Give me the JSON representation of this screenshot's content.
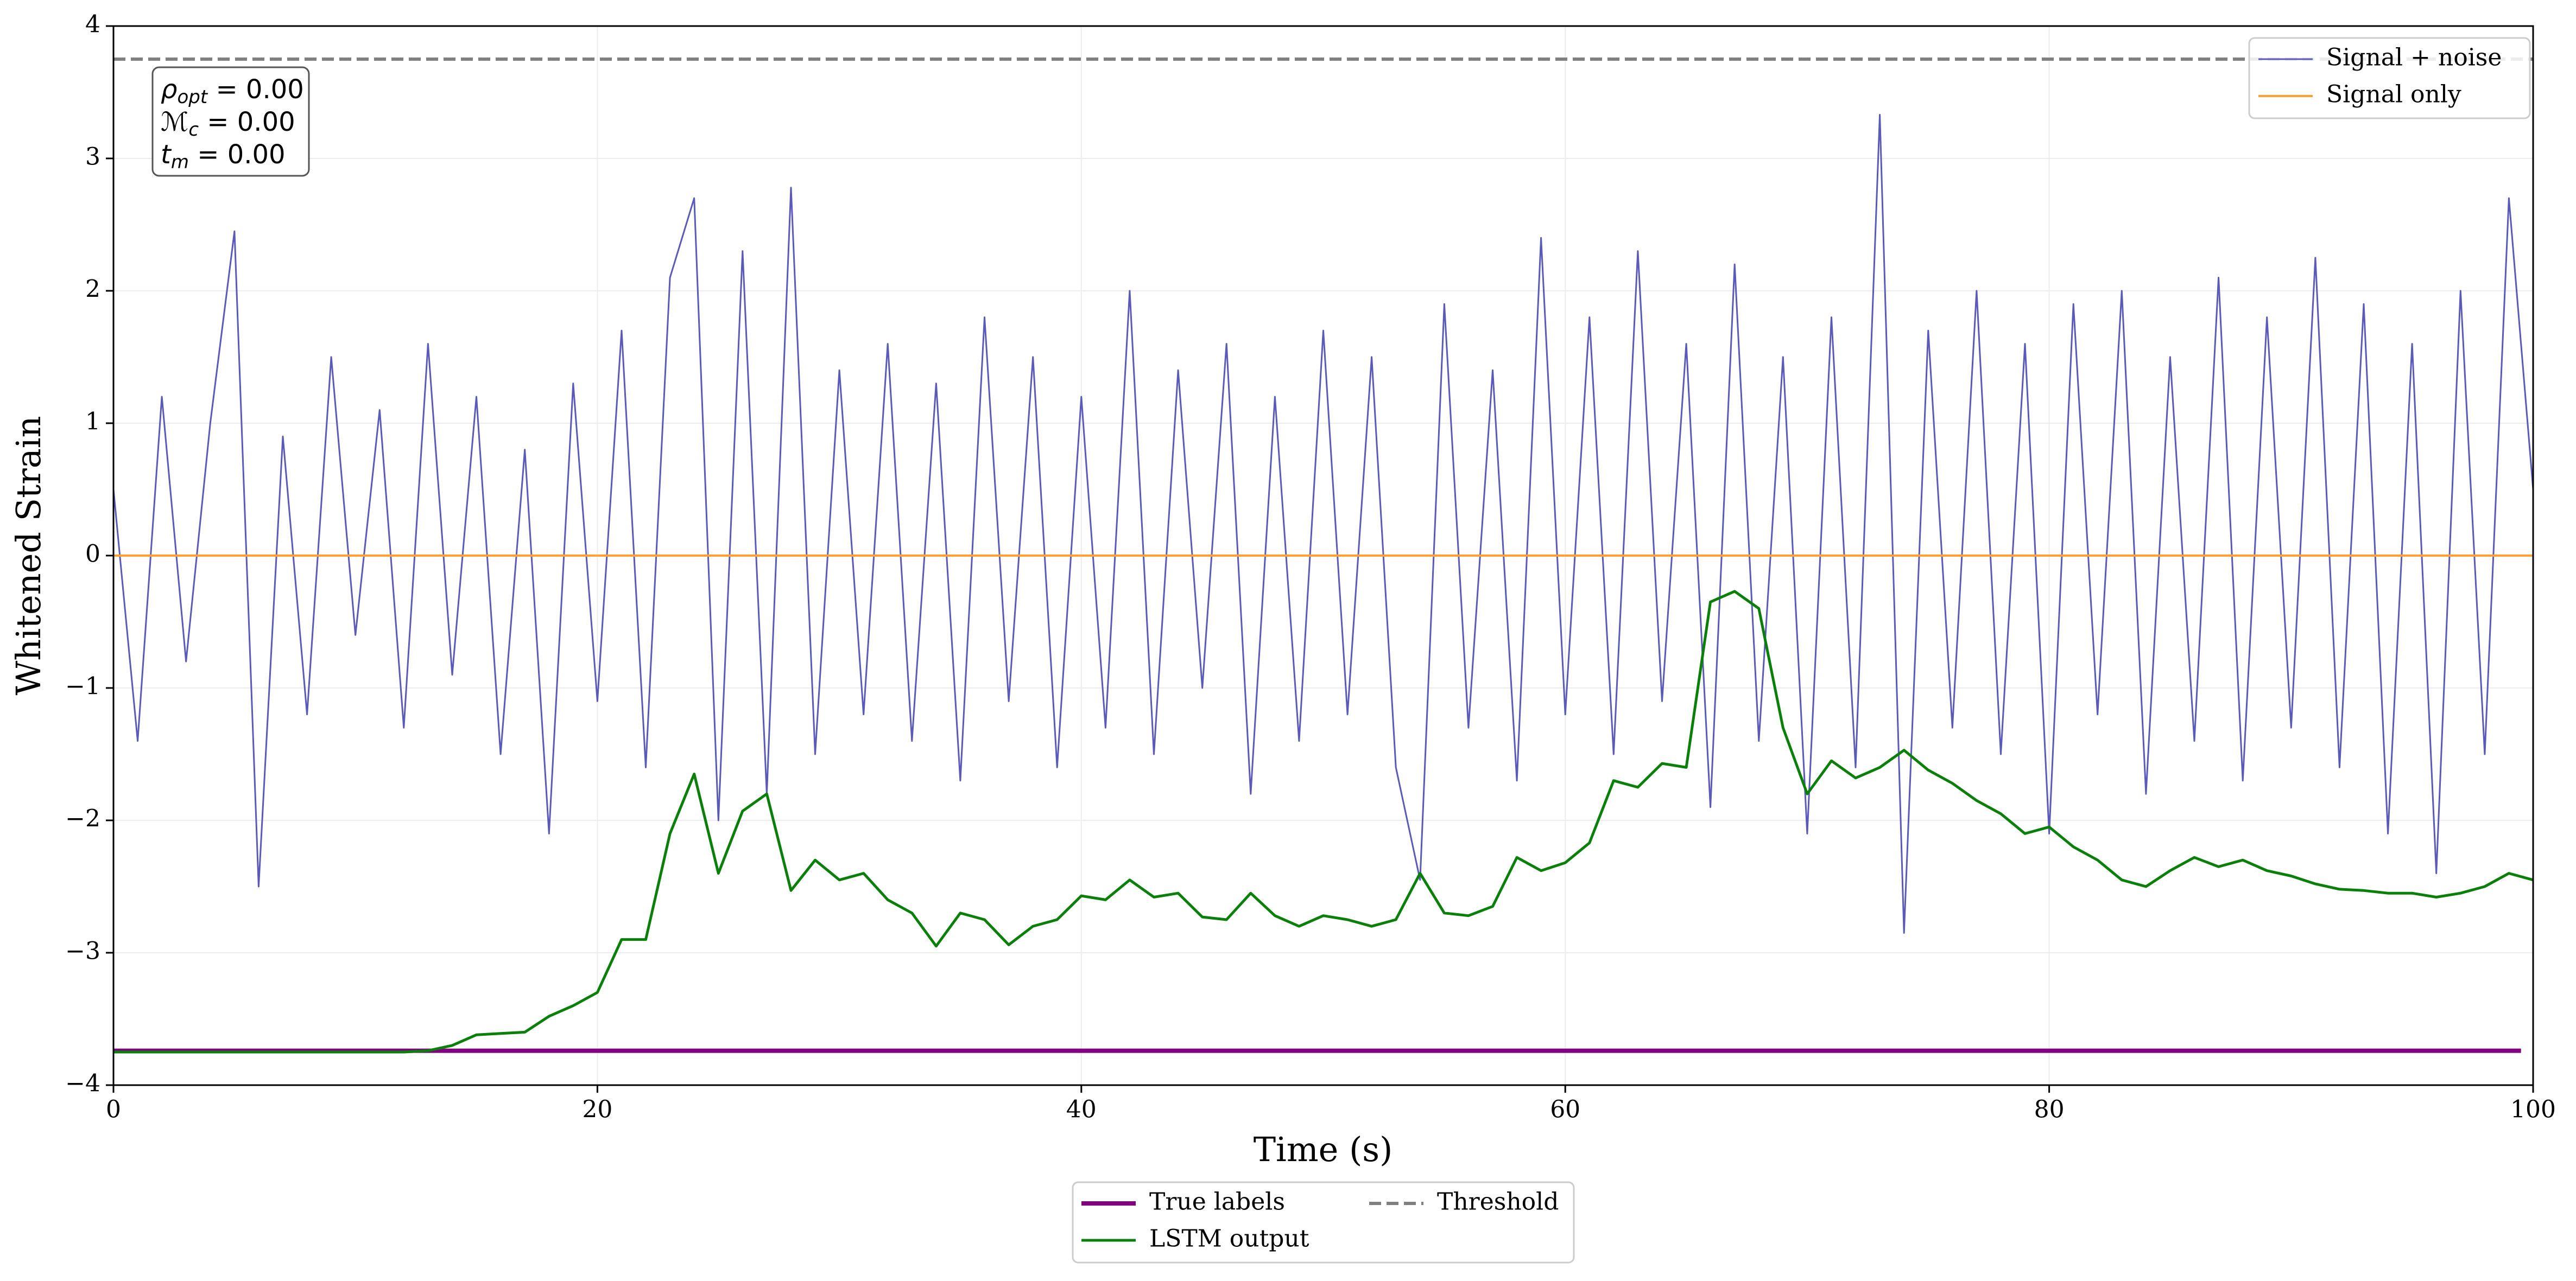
{
  "chart_data": {
    "type": "line",
    "xlabel": "Time (s)",
    "ylabel": "Whitened Strain",
    "xlim": [
      0,
      100
    ],
    "ylim": [
      -4,
      4
    ],
    "xticks": [
      0,
      20,
      40,
      60,
      80,
      100
    ],
    "yticks": [
      {
        "value": -4,
        "label": "−4"
      },
      {
        "value": -3,
        "label": "−3"
      },
      {
        "value": -2,
        "label": "−2"
      },
      {
        "value": -1,
        "label": "−1"
      },
      0,
      1,
      2,
      3,
      4
    ],
    "grid": true,
    "annotation": [
      {
        "symbol": "ρ",
        "sub": "opt",
        "text": " = 0.00"
      },
      {
        "symbol": "ℳ",
        "sub": "c",
        "text": " = 0.00"
      },
      {
        "symbol": "t",
        "sub": "m",
        "text": " = 0.00"
      }
    ],
    "x": [
      0,
      1,
      2,
      3,
      4,
      5,
      6,
      7,
      8,
      9,
      10,
      11,
      12,
      13,
      14,
      15,
      16,
      17,
      18,
      19,
      20,
      21,
      22,
      23,
      24,
      25,
      26,
      27,
      28,
      29,
      30,
      31,
      32,
      33,
      34,
      35,
      36,
      37,
      38,
      39,
      40,
      41,
      42,
      43,
      44,
      45,
      46,
      47,
      48,
      49,
      50,
      51,
      52,
      53,
      54,
      55,
      56,
      57,
      58,
      59,
      60,
      61,
      62,
      63,
      64,
      65,
      66,
      67,
      68,
      69,
      70,
      71,
      72,
      73,
      74,
      75,
      76,
      77,
      78,
      79,
      80,
      81,
      82,
      83,
      84,
      85,
      86,
      87,
      88,
      89,
      90,
      91,
      92,
      93,
      94,
      95,
      96,
      97,
      98,
      99,
      100
    ],
    "series": [
      {
        "name": "Signal + noise",
        "color": "#5a5ab8",
        "width": 3,
        "legend": "upper right",
        "values": [
          0.5,
          -1.4,
          1.2,
          -0.8,
          1.0,
          2.45,
          -2.5,
          0.9,
          -1.2,
          1.5,
          -0.6,
          1.1,
          -1.3,
          1.6,
          -0.9,
          1.2,
          -1.5,
          0.8,
          -2.1,
          1.3,
          -1.1,
          1.7,
          -1.6,
          2.1,
          2.7,
          -2.0,
          2.3,
          -1.8,
          2.78,
          -1.5,
          1.4,
          -1.2,
          1.6,
          -1.4,
          1.3,
          -1.7,
          1.8,
          -1.1,
          1.5,
          -1.6,
          1.2,
          -1.3,
          2.0,
          -1.5,
          1.4,
          -1.0,
          1.6,
          -1.8,
          1.2,
          -1.4,
          1.7,
          -1.2,
          1.5,
          -1.6,
          -2.45,
          1.9,
          -1.3,
          1.4,
          -1.7,
          2.4,
          -1.2,
          1.8,
          -1.5,
          2.3,
          -1.1,
          1.6,
          -1.9,
          2.2,
          -1.4,
          1.5,
          -2.1,
          1.8,
          -1.6,
          3.33,
          -2.85,
          1.7,
          -1.3,
          2.0,
          -1.5,
          1.6,
          -2.1,
          1.9,
          -1.2,
          2.0,
          -1.8,
          1.5,
          -1.4,
          2.1,
          -1.7,
          1.8,
          -1.3,
          2.25,
          -1.6,
          1.9,
          -2.1,
          1.6,
          -2.4,
          2.0,
          -1.5,
          2.7,
          0.5
        ]
      },
      {
        "name": "Signal only",
        "color": "#ffa030",
        "width": 4,
        "legend": "upper right",
        "x": [
          0,
          100
        ],
        "values": [
          0,
          0
        ]
      },
      {
        "name": "True labels",
        "color": "#800080",
        "width": 8,
        "legend": "below",
        "x": [
          0,
          99.5
        ],
        "values": [
          -3.74,
          -3.74
        ]
      },
      {
        "name": "LSTM output",
        "color": "#0a800a",
        "width": 5,
        "legend": "below",
        "values": [
          -3.75,
          -3.75,
          -3.75,
          -3.75,
          -3.75,
          -3.75,
          -3.75,
          -3.75,
          -3.75,
          -3.75,
          -3.75,
          -3.75,
          -3.75,
          -3.74,
          -3.7,
          -3.62,
          -3.61,
          -3.6,
          -3.48,
          -3.4,
          -3.3,
          -2.9,
          -2.9,
          -2.1,
          -1.65,
          -2.4,
          -1.93,
          -1.8,
          -2.53,
          -2.3,
          -2.45,
          -2.4,
          -2.6,
          -2.7,
          -2.95,
          -2.7,
          -2.75,
          -2.94,
          -2.8,
          -2.75,
          -2.57,
          -2.6,
          -2.45,
          -2.58,
          -2.55,
          -2.73,
          -2.75,
          -2.55,
          -2.72,
          -2.8,
          -2.72,
          -2.75,
          -2.8,
          -2.75,
          -2.4,
          -2.7,
          -2.72,
          -2.65,
          -2.28,
          -2.38,
          -2.32,
          -2.17,
          -1.7,
          -1.75,
          -1.57,
          -1.6,
          -0.35,
          -0.27,
          -0.4,
          -1.3,
          -1.8,
          -1.55,
          -1.68,
          -1.6,
          -1.47,
          -1.62,
          -1.72,
          -1.85,
          -1.95,
          -2.1,
          -2.05,
          -2.2,
          -2.3,
          -2.45,
          -2.5,
          -2.38,
          -2.28,
          -2.35,
          -2.3,
          -2.38,
          -2.42,
          -2.48,
          -2.52,
          -2.53,
          -2.55,
          -2.55,
          -2.58,
          -2.55,
          -2.5,
          -2.4,
          -2.45
        ]
      },
      {
        "name": "Threshold",
        "color": "#808080",
        "width": 6,
        "dashed": true,
        "legend": "below",
        "x": [
          0,
          100
        ],
        "values": [
          3.75,
          3.75
        ]
      }
    ]
  }
}
